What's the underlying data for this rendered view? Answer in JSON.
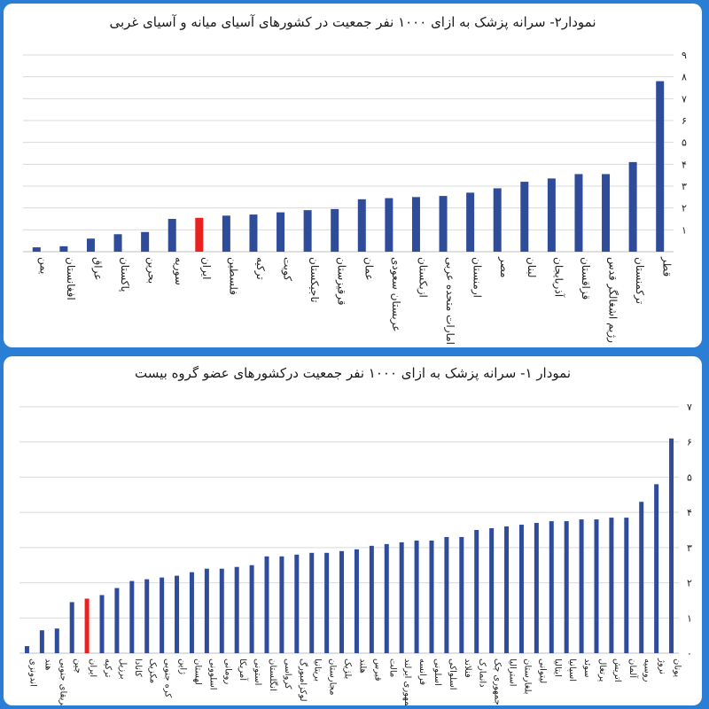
{
  "chart_data": [
    {
      "type": "bar",
      "title": "نمودار۲- سرانه پزشک به ازای ۱۰۰۰ نفر جمعیت در کشورهای آسیای میانه و آسیای غربی",
      "categories": [
        "یمن",
        "افغانستان",
        "عراق",
        "پاکستان",
        "بحرین",
        "سوریه",
        "ایران",
        "فلسطین",
        "ترکیه",
        "کویت",
        "تاجیکستان",
        "قرقیزستان",
        "عمان",
        "عربستان سعودی",
        "ازبکستان",
        "امارات متحده عربی",
        "ارمنستان",
        "مصر",
        "لبنان",
        "آذربایجان",
        "قزاقستان",
        "رژیم اشغالگر قدس",
        "ترکمنستان",
        "قطر"
      ],
      "values": [
        0.2,
        0.25,
        0.6,
        0.8,
        0.9,
        1.5,
        1.55,
        1.65,
        1.7,
        1.8,
        1.9,
        1.95,
        2.4,
        2.45,
        2.5,
        2.55,
        2.7,
        2.9,
        3.2,
        3.35,
        3.55,
        3.55,
        4.1,
        7.8
      ],
      "highlight": "ایران",
      "bar_color": "#2f4c9a",
      "highlight_color": "#e8231f",
      "ylim": [
        0,
        9
      ],
      "yticks": [
        "",
        "۱",
        "۲",
        "۳",
        "۴",
        "۵",
        "۶",
        "۷",
        "۸",
        "۹"
      ],
      "grid": true
    },
    {
      "type": "bar",
      "title": "نمودار ۱- سرانه پزشک به ازای ۱۰۰۰ نفر جمعیت درکشورهای عضو گروه بیست",
      "categories": [
        "اندونزی",
        "هند",
        "آفریقای جنوبی",
        "چین",
        "ایران",
        "ترکیه",
        "برزیل",
        "کانادا",
        "مکزیک",
        "کره جنوبی",
        "ژاپن",
        "لهستان",
        "اسلوونی",
        "رومانی",
        "آمریکا",
        "استونی",
        "انگلستان",
        "کرواسی",
        "لوکزامبورگ",
        "بریتانیا",
        "مجارستان",
        "بلژیک",
        "هلند",
        "قبرس",
        "مالت",
        "جمهوری ایرلند",
        "فرانسه",
        "اسلونی",
        "اسلواکی",
        "فنلاند",
        "دانمارک",
        "جمهوری چک",
        "استرالیا",
        "بلغارستان",
        "لیتوانی",
        "ایتالیا",
        "اسپانیا",
        "سوئد",
        "پرتغال",
        "اتریش",
        "آلمان",
        "روسیه",
        "نروژ",
        "یونان"
      ],
      "values": [
        0.2,
        0.65,
        0.7,
        1.45,
        1.55,
        1.65,
        1.85,
        2.05,
        2.1,
        2.15,
        2.2,
        2.3,
        2.4,
        2.4,
        2.45,
        2.5,
        2.75,
        2.75,
        2.8,
        2.85,
        2.85,
        2.9,
        2.95,
        3.05,
        3.1,
        3.15,
        3.2,
        3.2,
        3.3,
        3.3,
        3.5,
        3.55,
        3.6,
        3.65,
        3.7,
        3.75,
        3.75,
        3.8,
        3.8,
        3.85,
        3.85,
        4.3,
        4.8,
        6.1
      ],
      "highlight": "ایران",
      "bar_color": "#2f4c9a",
      "highlight_color": "#e8231f",
      "ylim": [
        0,
        7
      ],
      "yticks": [
        "۰",
        "۱",
        "۲",
        "۳",
        "۴",
        "۵",
        "۶",
        "۷"
      ],
      "grid": true
    }
  ]
}
